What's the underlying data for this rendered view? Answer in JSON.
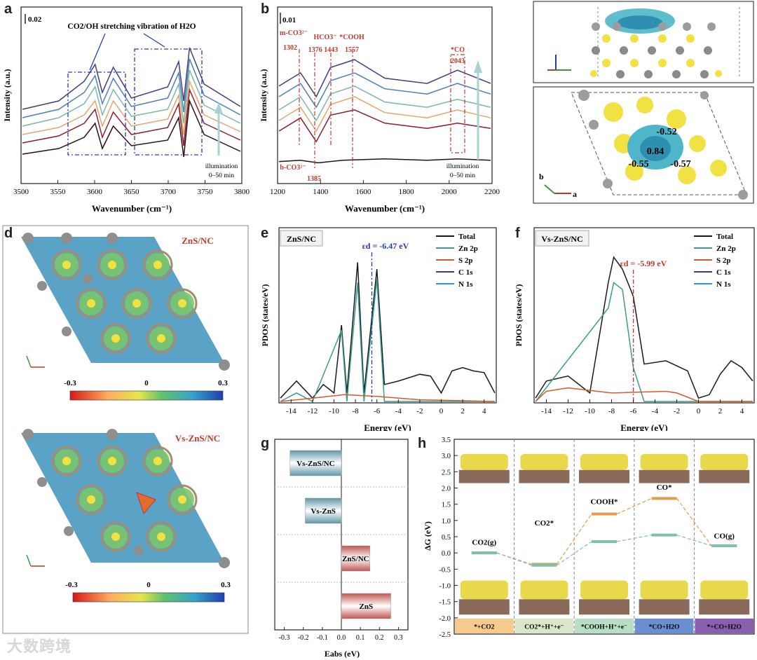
{
  "panels": {
    "a": {
      "label": "a",
      "scale_bar": "0.02",
      "title": "CO2/OH stretching vibration of H2O",
      "xlabel": "Wavenumber (cm⁻¹)",
      "ylabel": "Intensity (a.u.)",
      "arrow_note_1": "illumination",
      "arrow_note_2": "0–50 min",
      "xticks": [
        3500,
        3550,
        3600,
        3650,
        3700,
        3750,
        3800
      ]
    },
    "b": {
      "label": "b",
      "scale_bar": "0.01",
      "xlabel": "Wavenumber (cm⁻¹)",
      "ylabel": "Intensity (a.u.)",
      "arrow_note_1": "illumination",
      "arrow_note_2": "0–50 min",
      "xticks": [
        1200,
        1400,
        1600,
        1800,
        2000,
        2200
      ],
      "peaks": [
        {
          "name": "m-CO3²⁻",
          "value": "1302"
        },
        {
          "name": "HCO3⁻",
          "value": "1376 1443"
        },
        {
          "name": "*COOH",
          "value": "1557"
        },
        {
          "name": "*CO",
          "value": "2043"
        },
        {
          "name": "b-CO3²⁻",
          "value": "1385"
        }
      ]
    },
    "c": {
      "label": "c",
      "charges": [
        "-0.52",
        "0.84",
        "-0.55",
        "-0.57"
      ],
      "axis_b": "b",
      "axis_a": "a"
    },
    "d": {
      "label": "d",
      "top_title": "ZnS/NC",
      "bottom_title": "Vs-ZnS/NC",
      "colorbar_ticks": [
        "-0.3",
        "0",
        "0.3"
      ]
    },
    "e": {
      "label": "e",
      "tag": "ZnS/NC",
      "ed_label": "εd = -6.47 eV",
      "xlabel": "Energy (eV)",
      "ylabel": "PDOS (states/eV)",
      "legend": [
        "Total",
        "Zn 2p",
        "S 2p",
        "C 1s",
        "N 1s"
      ],
      "xticks": [
        -14,
        -12,
        -10,
        -8,
        -6,
        -4,
        -2,
        0,
        2,
        4
      ]
    },
    "f": {
      "label": "f",
      "tag": "Vs-ZnS/NC",
      "ed_label": "εd = -5.99 eV",
      "xlabel": "Energy (eV)",
      "ylabel": "PDOS (states/eV)",
      "legend": [
        "Total",
        "Zn 2p",
        "S 2p",
        "C 1s",
        "N 1s"
      ],
      "xticks": [
        -14,
        -12,
        -10,
        -8,
        -6,
        -4,
        -2,
        0,
        2,
        4
      ]
    },
    "g": {
      "label": "g",
      "xlabel": "Eabs (eV)",
      "xticks": [
        "-0.3",
        "-0.2",
        "-0.1",
        "0.0",
        "0.1",
        "0.2",
        "0.3"
      ]
    },
    "h": {
      "label": "h",
      "ylabel": "ΔG (eV)",
      "yticks": [
        "3.5",
        "3.0",
        "2.5",
        "2.0",
        "1.5",
        "1.0",
        "0.5",
        "0.0",
        "-0.5",
        "-1.0",
        "-1.5",
        "-2.0",
        "-2.5"
      ],
      "state_labels": [
        "CO2(g)",
        "CO2*",
        "COOH*",
        "CO*",
        "CO(g)"
      ],
      "steps": [
        "*+CO2",
        "CO2*+H⁺+e⁻",
        "*COOH+H⁺+e⁻",
        "*CO+H2O",
        "*+CO+H2O"
      ]
    }
  },
  "watermark": "大数跨境",
  "colors": {
    "black": "#1a1a1a",
    "teal": "#3d9a93",
    "orange": "#d65a2e",
    "purple": "#3a3a8c",
    "blue": "#3b8fd0",
    "blue_dash": "#1f3fb0",
    "red_dash": "#c0392b"
  },
  "chart_data": [
    {
      "type": "line",
      "panel": "a",
      "xlabel": "Wavenumber (cm⁻¹)",
      "ylabel": "Intensity (a.u.)",
      "xlim": [
        3500,
        3800
      ],
      "series": [
        {
          "values": [
            [
              3500,
              0.2
            ],
            [
              3550,
              0.24
            ],
            [
              3585,
              0.32
            ],
            [
              3600,
              0.42
            ],
            [
              3610,
              0.24
            ],
            [
              3625,
              0.4
            ],
            [
              3650,
              0.26
            ],
            [
              3700,
              0.3
            ],
            [
              3715,
              0.46
            ],
            [
              3722,
              0.18
            ],
            [
              3730,
              0.58
            ],
            [
              3750,
              0.34
            ],
            [
              3800,
              0.22
            ]
          ]
        },
        {
          "values": [
            [
              3500,
              0.28
            ],
            [
              3550,
              0.33
            ],
            [
              3585,
              0.42
            ],
            [
              3600,
              0.52
            ],
            [
              3610,
              0.32
            ],
            [
              3625,
              0.5
            ],
            [
              3650,
              0.34
            ],
            [
              3700,
              0.39
            ],
            [
              3715,
              0.56
            ],
            [
              3722,
              0.26
            ],
            [
              3730,
              0.66
            ],
            [
              3750,
              0.42
            ],
            [
              3800,
              0.3
            ]
          ]
        },
        {
          "values": [
            [
              3500,
              0.34
            ],
            [
              3550,
              0.39
            ],
            [
              3585,
              0.48
            ],
            [
              3600,
              0.58
            ],
            [
              3610,
              0.4
            ],
            [
              3625,
              0.58
            ],
            [
              3650,
              0.4
            ],
            [
              3700,
              0.45
            ],
            [
              3715,
              0.62
            ],
            [
              3722,
              0.34
            ],
            [
              3730,
              0.72
            ],
            [
              3750,
              0.48
            ],
            [
              3800,
              0.36
            ]
          ]
        },
        {
          "values": [
            [
              3500,
              0.4
            ],
            [
              3550,
              0.46
            ],
            [
              3585,
              0.56
            ],
            [
              3600,
              0.68
            ],
            [
              3610,
              0.48
            ],
            [
              3625,
              0.66
            ],
            [
              3650,
              0.47
            ],
            [
              3700,
              0.52
            ],
            [
              3715,
              0.7
            ],
            [
              3722,
              0.42
            ],
            [
              3730,
              0.8
            ],
            [
              3750,
              0.55
            ],
            [
              3800,
              0.42
            ]
          ]
        },
        {
          "values": [
            [
              3500,
              0.46
            ],
            [
              3550,
              0.52
            ],
            [
              3585,
              0.64
            ],
            [
              3600,
              0.76
            ],
            [
              3610,
              0.56
            ],
            [
              3625,
              0.74
            ],
            [
              3650,
              0.54
            ],
            [
              3700,
              0.6
            ],
            [
              3715,
              0.78
            ],
            [
              3722,
              0.5
            ],
            [
              3730,
              0.88
            ],
            [
              3750,
              0.62
            ],
            [
              3800,
              0.48
            ]
          ]
        },
        {
          "values": [
            [
              3500,
              0.52
            ],
            [
              3550,
              0.58
            ],
            [
              3585,
              0.72
            ],
            [
              3600,
              0.84
            ],
            [
              3610,
              0.64
            ],
            [
              3625,
              0.82
            ],
            [
              3650,
              0.6
            ],
            [
              3700,
              0.68
            ],
            [
              3715,
              0.86
            ],
            [
              3722,
              0.58
            ],
            [
              3730,
              0.96
            ],
            [
              3750,
              0.7
            ],
            [
              3800,
              0.54
            ]
          ]
        }
      ]
    },
    {
      "type": "line",
      "panel": "b",
      "xlabel": "Wavenumber (cm⁻¹)",
      "ylabel": "Intensity (a.u.)",
      "xlim": [
        1200,
        2200
      ],
      "series": [
        {
          "values": [
            [
              1200,
              0.05
            ],
            [
              1300,
              0.06
            ],
            [
              1385,
              0.04
            ],
            [
              1500,
              0.06
            ],
            [
              1700,
              0.07
            ],
            [
              1900,
              0.06
            ],
            [
              2043,
              0.07
            ],
            [
              2200,
              0.06
            ]
          ]
        },
        {
          "values": [
            [
              1200,
              0.28
            ],
            [
              1302,
              0.38
            ],
            [
              1376,
              0.2
            ],
            [
              1443,
              0.4
            ],
            [
              1557,
              0.44
            ],
            [
              1700,
              0.34
            ],
            [
              1900,
              0.3
            ],
            [
              2043,
              0.34
            ],
            [
              2200,
              0.3
            ]
          ]
        },
        {
          "values": [
            [
              1200,
              0.36
            ],
            [
              1302,
              0.46
            ],
            [
              1376,
              0.28
            ],
            [
              1443,
              0.48
            ],
            [
              1557,
              0.54
            ],
            [
              1700,
              0.42
            ],
            [
              1900,
              0.38
            ],
            [
              2043,
              0.44
            ],
            [
              2200,
              0.38
            ]
          ]
        },
        {
          "values": [
            [
              1200,
              0.44
            ],
            [
              1302,
              0.54
            ],
            [
              1376,
              0.36
            ],
            [
              1443,
              0.56
            ],
            [
              1557,
              0.62
            ],
            [
              1700,
              0.5
            ],
            [
              1900,
              0.46
            ],
            [
              2043,
              0.52
            ],
            [
              2200,
              0.46
            ]
          ]
        },
        {
          "values": [
            [
              1200,
              0.54
            ],
            [
              1302,
              0.64
            ],
            [
              1376,
              0.46
            ],
            [
              1443,
              0.66
            ],
            [
              1557,
              0.72
            ],
            [
              1700,
              0.6
            ],
            [
              1900,
              0.56
            ],
            [
              2043,
              0.64
            ],
            [
              2200,
              0.56
            ]
          ]
        },
        {
          "values": [
            [
              1200,
              0.62
            ],
            [
              1302,
              0.72
            ],
            [
              1376,
              0.54
            ],
            [
              1443,
              0.76
            ],
            [
              1557,
              0.82
            ],
            [
              1700,
              0.68
            ],
            [
              1900,
              0.64
            ],
            [
              2043,
              0.74
            ],
            [
              2200,
              0.64
            ]
          ]
        }
      ]
    },
    {
      "type": "line",
      "panel": "e",
      "xlabel": "Energy (eV)",
      "ylabel": "PDOS (states/eV)",
      "xlim": [
        -15,
        5
      ],
      "series": [
        {
          "name": "Total",
          "values": [
            [
              -15,
              0.02
            ],
            [
              -13.5,
              0.12
            ],
            [
              -12,
              0.02
            ],
            [
              -11,
              0.1
            ],
            [
              -10,
              0.05
            ],
            [
              -9.3,
              0.45
            ],
            [
              -8.8,
              0.05
            ],
            [
              -7.8,
              0.82
            ],
            [
              -7.2,
              0.05
            ],
            [
              -6,
              0.78
            ],
            [
              -5.3,
              0.1
            ],
            [
              -4,
              0.12
            ],
            [
              -2,
              0.16
            ],
            [
              -1,
              0.15
            ],
            [
              0,
              0.05
            ],
            [
              1,
              0.18
            ],
            [
              2,
              0.2
            ],
            [
              3,
              0.18
            ],
            [
              4,
              0.17
            ],
            [
              5,
              0.05
            ]
          ]
        },
        {
          "name": "Zn 2p",
          "values": [
            [
              -15,
              0.0
            ],
            [
              -13.5,
              0.05
            ],
            [
              -12,
              0.0
            ],
            [
              -9.3,
              0.42
            ],
            [
              -8.8,
              0.0
            ],
            [
              -7.8,
              0.7
            ],
            [
              -7.2,
              0.0
            ],
            [
              -6,
              0.72
            ],
            [
              -5.3,
              0.0
            ],
            [
              5,
              0.0
            ]
          ]
        },
        {
          "name": "S 2p",
          "values": [
            [
              -15,
              0.0
            ],
            [
              -12,
              0.02
            ],
            [
              -9,
              0.04
            ],
            [
              -6,
              0.03
            ],
            [
              -2,
              0.01
            ],
            [
              5,
              0.0
            ]
          ]
        }
      ]
    },
    {
      "type": "line",
      "panel": "f",
      "xlabel": "Energy (eV)",
      "ylabel": "PDOS (states/eV)",
      "xlim": [
        -15,
        5
      ],
      "series": [
        {
          "name": "Total",
          "values": [
            [
              -15,
              0.02
            ],
            [
              -14,
              0.12
            ],
            [
              -12,
              0.15
            ],
            [
              -10,
              0.05
            ],
            [
              -8.3,
              0.7
            ],
            [
              -7.8,
              0.85
            ],
            [
              -7,
              0.78
            ],
            [
              -6,
              0.62
            ],
            [
              -5,
              0.22
            ],
            [
              -3,
              0.24
            ],
            [
              -1,
              0.18
            ],
            [
              0,
              0.02
            ],
            [
              1,
              0.04
            ],
            [
              2,
              0.16
            ],
            [
              3,
              0.24
            ],
            [
              4,
              0.2
            ],
            [
              5,
              0.12
            ]
          ]
        },
        {
          "name": "Zn 2p",
          "values": [
            [
              -15,
              0.0
            ],
            [
              -8.3,
              0.55
            ],
            [
              -7.8,
              0.7
            ],
            [
              -7,
              0.66
            ],
            [
              -6,
              0.2
            ],
            [
              -5,
              0.0
            ],
            [
              5,
              0.0
            ]
          ]
        },
        {
          "name": "S 2p",
          "values": [
            [
              -15,
              0.0
            ],
            [
              -14,
              0.06
            ],
            [
              -12,
              0.08
            ],
            [
              -8,
              0.05
            ],
            [
              -3,
              0.06
            ],
            [
              -2,
              0.05
            ],
            [
              0,
              0.0
            ],
            [
              5,
              0.0
            ]
          ]
        }
      ]
    },
    {
      "type": "bar",
      "panel": "g",
      "orientation": "horizontal",
      "xlabel": "Eabs (eV)",
      "xlim": [
        -0.35,
        0.35
      ],
      "categories": [
        "Vs-ZnS/NC",
        "Vs-ZnS",
        "ZnS/NC",
        "ZnS"
      ],
      "values": [
        -0.27,
        -0.19,
        0.15,
        0.26
      ]
    },
    {
      "type": "line",
      "panel": "h",
      "ylabel": "ΔG (eV)",
      "ylim": [
        -2.5,
        3.5
      ],
      "categories": [
        "*+CO2",
        "CO2*+H⁺+e⁻",
        "*COOH+H⁺+e⁻",
        "*CO+H2O",
        "*+CO+H2O"
      ],
      "series": [
        {
          "values": [
            0.0,
            -0.35,
            1.2,
            1.68,
            0.22
          ]
        },
        {
          "values": [
            0.0,
            -0.38,
            0.35,
            0.55,
            0.22
          ]
        }
      ]
    }
  ]
}
